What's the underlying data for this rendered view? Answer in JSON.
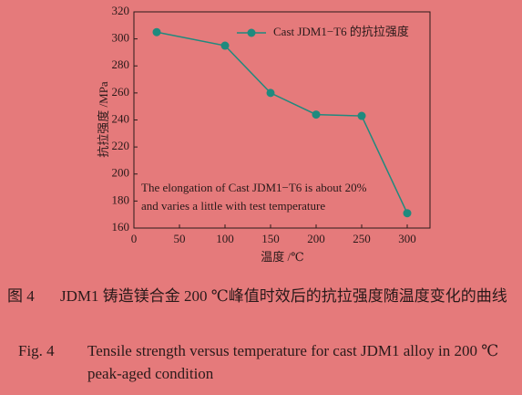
{
  "chart_data": {
    "type": "line",
    "x_label": "温度 /℃",
    "y_label": "抗拉强度 /MPa",
    "x": [
      25,
      100,
      150,
      200,
      250,
      300
    ],
    "series": [
      {
        "name": "Cast JDM1−T6 的抗拉强度",
        "color": "#1f8a7e",
        "values": [
          305,
          295,
          260,
          244,
          243,
          171
        ]
      }
    ],
    "xlim": [
      0,
      325
    ],
    "xticks": [
      0,
      50,
      100,
      150,
      200,
      250,
      300
    ],
    "ylim": [
      160,
      320
    ],
    "yticks": [
      160,
      180,
      200,
      220,
      240,
      260,
      280,
      300,
      320
    ],
    "annotation": [
      "The elongation of Cast JDM1−T6 is about 20%",
      "and varies a little with test temperature"
    ],
    "legend": "upper right"
  },
  "caption": {
    "cn_label": "图 4",
    "cn_text": "JDM1 铸造镁合金 200 ℃峰值时效后的抗拉强度随温度变化的曲线",
    "en_label": "Fig. 4",
    "en_text": "Tensile strength versus temperature for cast JDM1 alloy in 200 ℃  peak-aged condition"
  }
}
